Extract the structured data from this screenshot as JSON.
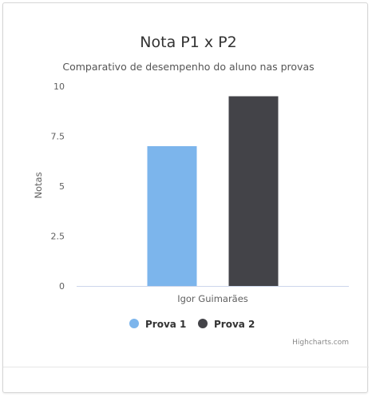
{
  "chart_data": {
    "type": "bar",
    "title": "Nota P1 x P2",
    "subtitle": "Comparativo de desempenho do aluno nas provas",
    "ylabel": "Notas",
    "categories": [
      "Igor Guimarães"
    ],
    "ylim": [
      0,
      10
    ],
    "yticks": [
      "0",
      "2.5",
      "5",
      "7.5",
      "10"
    ],
    "series": [
      {
        "name": "Prova 1",
        "values": [
          7
        ],
        "color": "#7cb5ec"
      },
      {
        "name": "Prova 2",
        "values": [
          9.5
        ],
        "color": "#434348"
      }
    ],
    "legend": "bottom-center",
    "grid": false
  },
  "credits": "Highcharts.com"
}
